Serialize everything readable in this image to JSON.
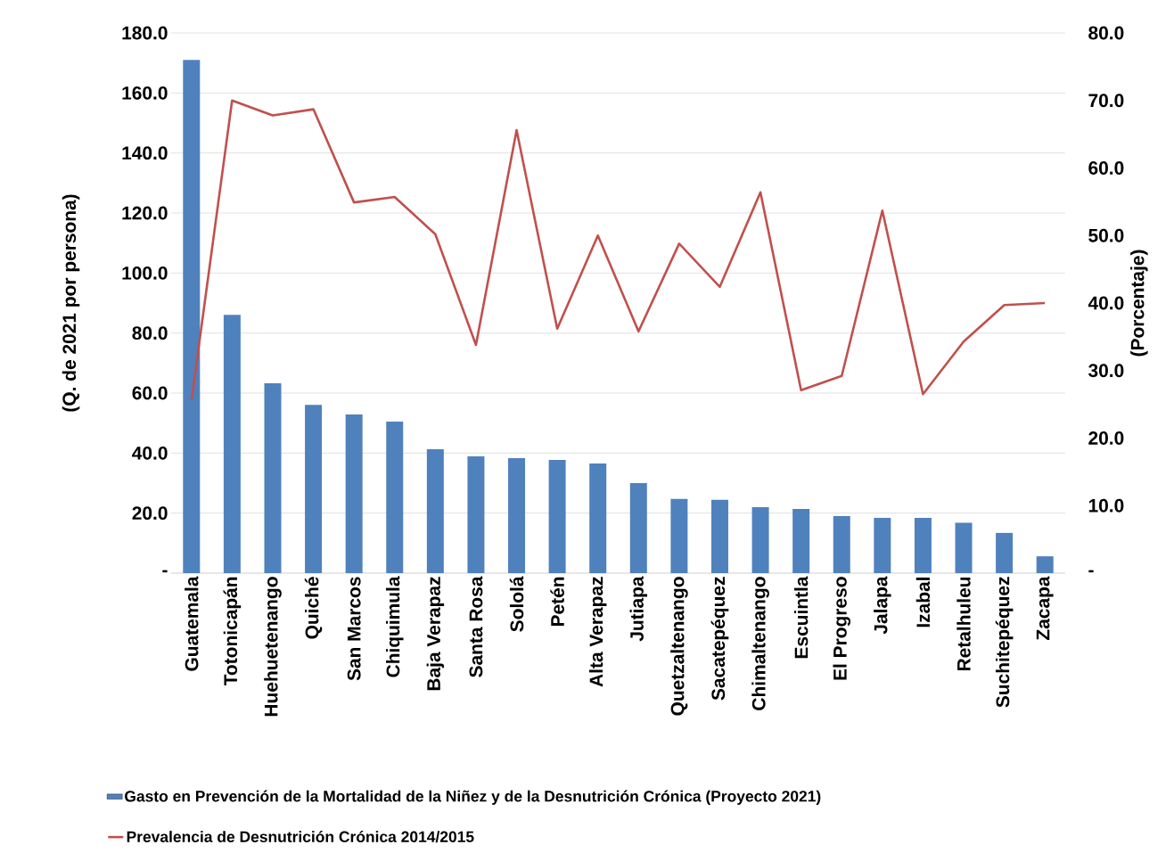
{
  "chart_data": {
    "type": "bar",
    "categories": [
      "Guatemala",
      "Totonicapán",
      "Huehuetenango",
      "Quiché",
      "San Marcos",
      "Chiquimula",
      "Baja Verapaz",
      "Santa Rosa",
      "Sololá",
      "Petén",
      "Alta Verapaz",
      "Jutiapa",
      "Quetzaltenango",
      "Sacatepéquez",
      "Chimaltenango",
      "Escuintla",
      "El Progreso",
      "Jalapa",
      "Izabal",
      "Retalhuleu",
      "Suchitepéquez",
      "Zacapa"
    ],
    "series": [
      {
        "name": "Gasto en Prevención de la Mortalidad de la Niñez y de la Desnutrición Crónica (Proyecto 2021)",
        "color": "#4f81bd",
        "values": [
          171,
          86.1,
          63.3,
          56.1,
          52.9,
          50.5,
          41.3,
          38.9,
          38.3,
          37.7,
          36.5,
          30.0,
          24.7,
          24.4,
          22.0,
          21.4,
          19.0,
          18.4,
          18.4,
          16.8,
          13.4,
          5.6
        ]
      },
      {
        "name": "Prevalencia de Desnutrición Crónica 2014/2015",
        "type": "line",
        "axis": "y2",
        "color": "#c0504d",
        "values": [
          25.6,
          70.0,
          67.8,
          68.7,
          54.9,
          55.7,
          50.2,
          33.8,
          65.6,
          36.2,
          50.0,
          35.8,
          48.8,
          42.4,
          56.4,
          27.1,
          29.2,
          53.7,
          26.5,
          34.3,
          39.7,
          40.0
        ]
      }
    ],
    "ylabel": "(Q. de 2021 por persona)",
    "y2label": "(Porcentaje)",
    "ylim": [
      0,
      180
    ],
    "yticks": [
      {
        "value": 0,
        "label": "-"
      },
      {
        "value": 20,
        "label": "20.0"
      },
      {
        "value": 40,
        "label": "40.0"
      },
      {
        "value": 60,
        "label": "60.0"
      },
      {
        "value": 80,
        "label": "80.0"
      },
      {
        "value": 100,
        "label": "100.0"
      },
      {
        "value": 120,
        "label": "120.0"
      },
      {
        "value": 140,
        "label": "140.0"
      },
      {
        "value": 160,
        "label": "160.0"
      },
      {
        "value": 180,
        "label": "180.0"
      }
    ],
    "y2lim": [
      0,
      80
    ],
    "y2ticks": [
      {
        "value": 0,
        "label": "-"
      },
      {
        "value": 10,
        "label": "10.0"
      },
      {
        "value": 20,
        "label": "20.0"
      },
      {
        "value": 30,
        "label": "30.0"
      },
      {
        "value": 40,
        "label": "40.0"
      },
      {
        "value": 50,
        "label": "50.0"
      },
      {
        "value": 60,
        "label": "60.0"
      },
      {
        "value": 70,
        "label": "70.0"
      },
      {
        "value": 80,
        "label": "80.0"
      }
    ],
    "grid": "y",
    "legend": "bottom",
    "marker": "none",
    "line_style": "solid"
  }
}
